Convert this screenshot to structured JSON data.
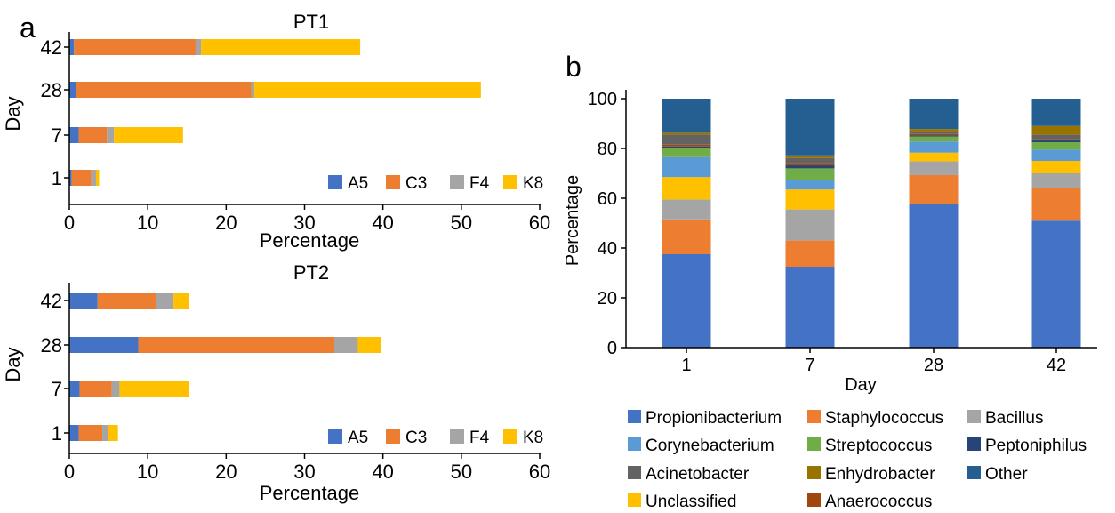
{
  "figure": {
    "panel_a_label": "a",
    "panel_b_label": "b"
  },
  "chart_data": [
    {
      "type": "bar",
      "orientation": "horizontal",
      "stacked": true,
      "title": "PT1",
      "xlabel": "Percentage",
      "ylabel": "Day",
      "categories": [
        "1",
        "7",
        "28",
        "42"
      ],
      "xlim": [
        0,
        60
      ],
      "xticks": [
        "0",
        "10",
        "20",
        "30",
        "40",
        "50",
        "60"
      ],
      "legend_position": "bottom-right",
      "series": [
        {
          "name": "A5",
          "color": "#4472c4",
          "values": [
            0.3,
            1.2,
            0.9,
            0.6
          ]
        },
        {
          "name": "C3",
          "color": "#ed7d31",
          "values": [
            2.5,
            3.6,
            22.3,
            15.5
          ]
        },
        {
          "name": "F4",
          "color": "#a5a5a5",
          "values": [
            0.6,
            0.9,
            0.4,
            0.7
          ]
        },
        {
          "name": "K8",
          "color": "#ffc000",
          "values": [
            0.4,
            8.8,
            28.9,
            20.3
          ]
        }
      ]
    },
    {
      "type": "bar",
      "orientation": "horizontal",
      "stacked": true,
      "title": "PT2",
      "xlabel": "Percentage",
      "ylabel": "Day",
      "categories": [
        "1",
        "7",
        "28",
        "42"
      ],
      "xlim": [
        0,
        60
      ],
      "xticks": [
        "0",
        "10",
        "20",
        "30",
        "40",
        "50",
        "60"
      ],
      "legend_position": "bottom-right",
      "series": [
        {
          "name": "A5",
          "color": "#4472c4",
          "values": [
            1.2,
            1.3,
            8.8,
            3.6
          ]
        },
        {
          "name": "C3",
          "color": "#ed7d31",
          "values": [
            3.0,
            4.1,
            25.0,
            7.5
          ]
        },
        {
          "name": "F4",
          "color": "#a5a5a5",
          "values": [
            0.7,
            1.0,
            3.0,
            2.2
          ]
        },
        {
          "name": "K8",
          "color": "#ffc000",
          "values": [
            1.3,
            8.8,
            3.0,
            1.9
          ]
        }
      ]
    },
    {
      "type": "bar",
      "orientation": "vertical",
      "stacked": true,
      "xlabel": "Day",
      "ylabel": "Percentage",
      "categories": [
        "1",
        "7",
        "28",
        "42"
      ],
      "ylim": [
        0,
        100
      ],
      "yticks": [
        "0",
        "20",
        "40",
        "60",
        "80",
        "100"
      ],
      "legend_position": "bottom",
      "series": [
        {
          "name": "Propionibacterium",
          "color": "#4472c4",
          "values": [
            37.5,
            32.5,
            57.8,
            51.0
          ]
        },
        {
          "name": "Staphylococcus",
          "color": "#ed7d31",
          "values": [
            14.0,
            10.5,
            11.5,
            13.0
          ]
        },
        {
          "name": "Bacillus",
          "color": "#a5a5a5",
          "values": [
            8.0,
            12.5,
            5.5,
            6.0
          ]
        },
        {
          "name": "Unclassified",
          "color": "#ffc000",
          "values": [
            9.0,
            8.0,
            3.5,
            5.0
          ]
        },
        {
          "name": "Corynebacterium",
          "color": "#5b9bd5",
          "values": [
            8.0,
            4.0,
            4.5,
            4.5
          ]
        },
        {
          "name": "Streptococcus",
          "color": "#70ad47",
          "values": [
            3.5,
            4.5,
            2.0,
            3.0
          ]
        },
        {
          "name": "Peptoniphilus",
          "color": "#264478",
          "values": [
            0.8,
            1.2,
            0.5,
            0.7
          ]
        },
        {
          "name": "Anaerococcus",
          "color": "#9e480e",
          "values": [
            0.7,
            1.0,
            0.5,
            0.6
          ]
        },
        {
          "name": "Acinetobacter",
          "color": "#636363",
          "values": [
            4.0,
            2.0,
            1.0,
            1.7
          ]
        },
        {
          "name": "Enhydrobacter",
          "color": "#997300",
          "values": [
            0.8,
            1.0,
            1.0,
            3.5
          ]
        },
        {
          "name": "Other",
          "color": "#255e91",
          "values": [
            13.7,
            22.8,
            12.2,
            11.0
          ]
        }
      ],
      "legend_order": [
        "Propionibacterium",
        "Staphylococcus",
        "Bacillus",
        "Corynebacterium",
        "Streptococcus",
        "Peptoniphilus",
        "Acinetobacter",
        "Enhydrobacter",
        "Other",
        "Unclassified",
        "Anaerococcus"
      ]
    }
  ]
}
